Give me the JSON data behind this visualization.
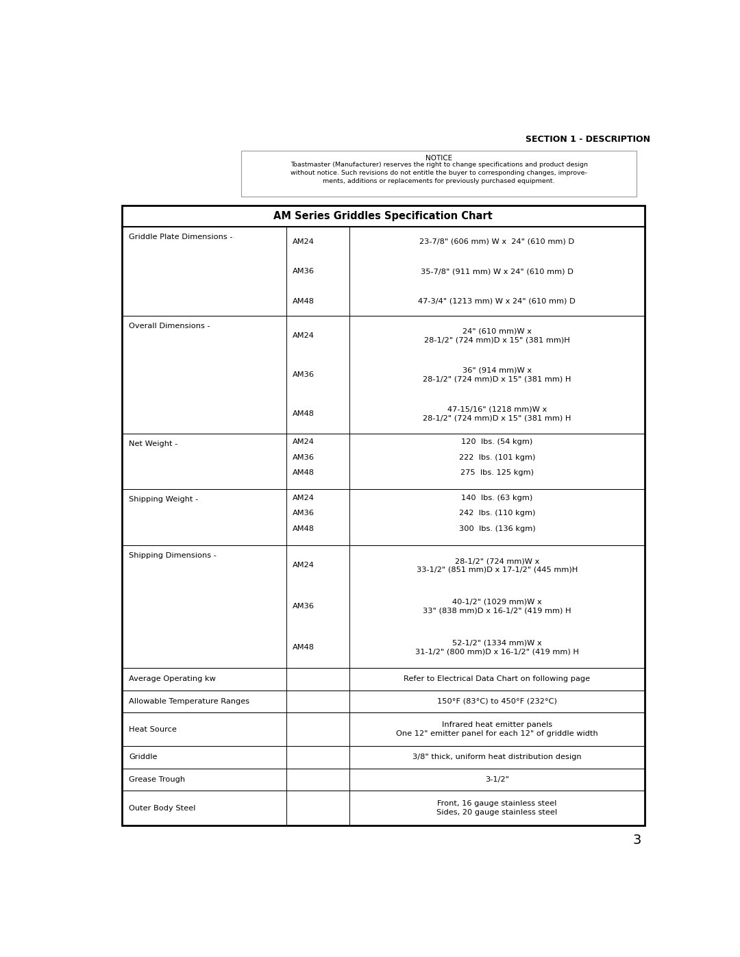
{
  "page_width": 10.8,
  "page_height": 13.97,
  "bg_color": "#ffffff",
  "section_header": "SECTION 1 - DESCRIPTION",
  "notice_title": "NOTICE",
  "notice_text": "Toastmaster (Manufacturer) reserves the right to change specifications and product design\nwithout notice. Such revisions do not entitle the buyer to corresponding changes, improve-\nments, additions or replacements for previously purchased equipment.",
  "table_title": "AM Series Griddles Specification Chart",
  "page_number": "3",
  "rows": [
    {
      "label": "Griddle Plate Dimensions -",
      "sub_rows": [
        {
          "model": "AM24",
          "value": "23-7/8\" (606 mm) W x  24\" (610 mm) D"
        },
        {
          "model": "AM36",
          "value": "35-7/8\" (911 mm) W x 24\" (610 mm) D"
        },
        {
          "model": "AM48",
          "value": "47-3/4\" (1213 mm) W x 24\" (610 mm) D"
        }
      ],
      "compact": false
    },
    {
      "label": "Overall Dimensions -",
      "sub_rows": [
        {
          "model": "AM24",
          "value": "24\" (610 mm)W x\n28-1/2\" (724 mm)D x 15\" (381 mm)H"
        },
        {
          "model": "AM36",
          "value": "36\" (914 mm)W x\n28-1/2\" (724 mm)D x 15\" (381 mm) H"
        },
        {
          "model": "AM48",
          "value": "47-15/16\" (1218 mm)W x\n28-1/2\" (724 mm)D x 15\" (381 mm) H"
        }
      ],
      "compact": false
    },
    {
      "label": "Net Weight -",
      "sub_rows": [
        {
          "model": "AM24",
          "value": "120  lbs. (54 kgm)"
        },
        {
          "model": "AM36",
          "value": "222  lbs. (101 kgm)"
        },
        {
          "model": "AM48",
          "value": "275  lbs. 125 kgm)"
        }
      ],
      "compact": true
    },
    {
      "label": "Shipping Weight -",
      "sub_rows": [
        {
          "model": "AM24",
          "value": "140  lbs. (63 kgm)"
        },
        {
          "model": "AM36",
          "value": "242  lbs. (110 kgm)"
        },
        {
          "model": "AM48",
          "value": "300  lbs. (136 kgm)"
        }
      ],
      "compact": true
    },
    {
      "label": "Shipping Dimensions -",
      "sub_rows": [
        {
          "model": "AM24",
          "value": "28-1/2\" (724 mm)W x\n33-1/2\" (851 mm)D x 17-1/2\" (445 mm)H"
        },
        {
          "model": "AM36",
          "value": "40-1/2\" (1029 mm)W x\n33\" (838 mm)D x 16-1/2\" (419 mm) H"
        },
        {
          "model": "AM48",
          "value": "52-1/2\" (1334 mm)W x\n31-1/2\" (800 mm)D x 16-1/2\" (419 mm) H"
        }
      ],
      "compact": false
    },
    {
      "label": "Average Operating kw",
      "sub_rows": [],
      "single_value": "Refer to Electrical Data Chart on following page"
    },
    {
      "label": "Allowable Temperature Ranges",
      "sub_rows": [],
      "single_value": "150°F (83°C) to 450°F (232°C)"
    },
    {
      "label": "Heat Source",
      "sub_rows": [],
      "single_value": "Infrared heat emitter panels\nOne 12\" emitter panel for each 12\" of griddle width"
    },
    {
      "label": "Griddle",
      "sub_rows": [],
      "single_value": "3/8\" thick, uniform heat distribution design"
    },
    {
      "label": "Grease Trough",
      "sub_rows": [],
      "single_value": "3-1/2\""
    },
    {
      "label": "Outer Body Steel",
      "sub_rows": [],
      "single_value": "Front, 16 gauge stainless steel\nSides, 20 gauge stainless steel"
    }
  ]
}
